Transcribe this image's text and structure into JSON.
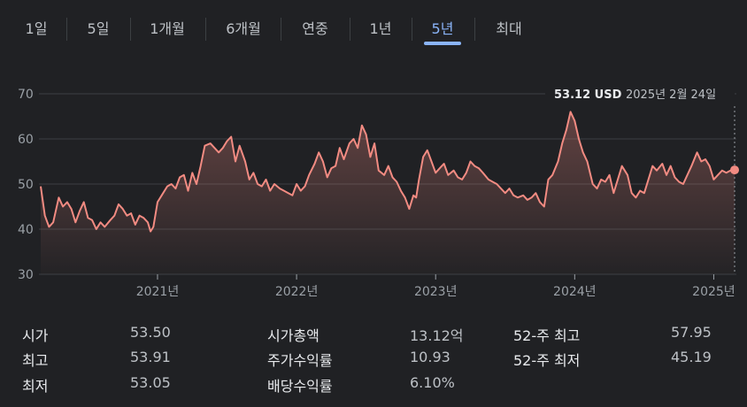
{
  "tabs": [
    {
      "label": "1일",
      "active": false
    },
    {
      "label": "5일",
      "active": false
    },
    {
      "label": "1개월",
      "active": false
    },
    {
      "label": "6개월",
      "active": false
    },
    {
      "label": "연중",
      "active": false
    },
    {
      "label": "1년",
      "active": false
    },
    {
      "label": "5년",
      "active": true
    },
    {
      "label": "최대",
      "active": false
    }
  ],
  "tooltip": {
    "price": "53.12 USD",
    "date": "2025년 2월 24일"
  },
  "stats": [
    {
      "label": "시가",
      "value": "53.50"
    },
    {
      "label": "최고",
      "value": "53.91"
    },
    {
      "label": "최저",
      "value": "53.05"
    },
    {
      "label": "시가총액",
      "value": "13.12억"
    },
    {
      "label": "주가수익률",
      "value": "10.93"
    },
    {
      "label": "배당수익률",
      "value": "6.10%"
    },
    {
      "label": "52-주 최고",
      "value": "57.95"
    },
    {
      "label": "52-주 최저",
      "value": "45.19"
    }
  ],
  "colors": {
    "line": "#f28b82",
    "accent": "#8ab4f8",
    "grid": "#3c4043",
    "background": "#202124"
  },
  "chart_data": {
    "type": "line",
    "ylim": [
      30,
      70
    ],
    "yticks": [
      "30",
      "40",
      "50",
      "60",
      "70"
    ],
    "xlim": [
      2020.16,
      2025.15
    ],
    "xticks": [
      {
        "x": 2021.0,
        "label": "2021년"
      },
      {
        "x": 2022.0,
        "label": "2022년"
      },
      {
        "x": 2023.0,
        "label": "2023년"
      },
      {
        "x": 2024.0,
        "label": "2024년"
      },
      {
        "x": 2025.0,
        "label": "2025년"
      }
    ],
    "grid": true,
    "series": [
      {
        "points": [
          [
            2020.16,
            49.5
          ],
          [
            2020.19,
            43
          ],
          [
            2020.22,
            40.5
          ],
          [
            2020.25,
            41.5
          ],
          [
            2020.29,
            47
          ],
          [
            2020.32,
            45
          ],
          [
            2020.35,
            46
          ],
          [
            2020.38,
            44.5
          ],
          [
            2020.41,
            41.5
          ],
          [
            2020.44,
            44
          ],
          [
            2020.47,
            46
          ],
          [
            2020.5,
            42.5
          ],
          [
            2020.53,
            42
          ],
          [
            2020.56,
            40
          ],
          [
            2020.59,
            41.5
          ],
          [
            2020.62,
            40.5
          ],
          [
            2020.66,
            42
          ],
          [
            2020.69,
            43
          ],
          [
            2020.72,
            45.5
          ],
          [
            2020.75,
            44.5
          ],
          [
            2020.78,
            43
          ],
          [
            2020.81,
            43.5
          ],
          [
            2020.84,
            41
          ],
          [
            2020.87,
            43
          ],
          [
            2020.9,
            42.5
          ],
          [
            2020.93,
            41.5
          ],
          [
            2020.95,
            39.5
          ],
          [
            2020.97,
            40.5
          ],
          [
            2021.0,
            46
          ],
          [
            2021.03,
            47.5
          ],
          [
            2021.07,
            49.5
          ],
          [
            2021.1,
            50
          ],
          [
            2021.13,
            49
          ],
          [
            2021.16,
            51.5
          ],
          [
            2021.19,
            52
          ],
          [
            2021.22,
            48.5
          ],
          [
            2021.25,
            52.5
          ],
          [
            2021.28,
            50
          ],
          [
            2021.31,
            54
          ],
          [
            2021.34,
            58.5
          ],
          [
            2021.38,
            59
          ],
          [
            2021.41,
            58
          ],
          [
            2021.44,
            57
          ],
          [
            2021.47,
            58
          ],
          [
            2021.5,
            59.5
          ],
          [
            2021.53,
            60.5
          ],
          [
            2021.56,
            55
          ],
          [
            2021.59,
            58.5
          ],
          [
            2021.63,
            55
          ],
          [
            2021.66,
            51
          ],
          [
            2021.69,
            52.5
          ],
          [
            2021.72,
            50
          ],
          [
            2021.75,
            49.5
          ],
          [
            2021.78,
            51
          ],
          [
            2021.81,
            48.5
          ],
          [
            2021.84,
            50
          ],
          [
            2021.88,
            49
          ],
          [
            2021.91,
            48.5
          ],
          [
            2021.94,
            48
          ],
          [
            2021.97,
            47.5
          ],
          [
            2022.0,
            50
          ],
          [
            2022.03,
            48.5
          ],
          [
            2022.06,
            49.5
          ],
          [
            2022.09,
            52
          ],
          [
            2022.13,
            54.5
          ],
          [
            2022.16,
            57
          ],
          [
            2022.19,
            55
          ],
          [
            2022.22,
            51.5
          ],
          [
            2022.25,
            53.5
          ],
          [
            2022.28,
            54
          ],
          [
            2022.31,
            58
          ],
          [
            2022.34,
            55.5
          ],
          [
            2022.38,
            59
          ],
          [
            2022.41,
            60
          ],
          [
            2022.44,
            58
          ],
          [
            2022.47,
            63
          ],
          [
            2022.5,
            61
          ],
          [
            2022.53,
            56
          ],
          [
            2022.56,
            59
          ],
          [
            2022.59,
            53
          ],
          [
            2022.63,
            52
          ],
          [
            2022.66,
            54
          ],
          [
            2022.69,
            51.5
          ],
          [
            2022.72,
            50.5
          ],
          [
            2022.75,
            48.5
          ],
          [
            2022.78,
            47
          ],
          [
            2022.81,
            44.5
          ],
          [
            2022.84,
            47.5
          ],
          [
            2022.86,
            47
          ],
          [
            2022.88,
            51
          ],
          [
            2022.91,
            56
          ],
          [
            2022.94,
            57.5
          ],
          [
            2022.97,
            55
          ],
          [
            2023.0,
            52.5
          ],
          [
            2023.03,
            53.5
          ],
          [
            2023.06,
            54.5
          ],
          [
            2023.09,
            52
          ],
          [
            2023.13,
            53
          ],
          [
            2023.16,
            51.5
          ],
          [
            2023.19,
            51
          ],
          [
            2023.22,
            52.5
          ],
          [
            2023.25,
            55
          ],
          [
            2023.28,
            54
          ],
          [
            2023.31,
            53.5
          ],
          [
            2023.34,
            52.5
          ],
          [
            2023.38,
            51
          ],
          [
            2023.41,
            50.5
          ],
          [
            2023.44,
            50
          ],
          [
            2023.47,
            49
          ],
          [
            2023.5,
            48
          ],
          [
            2023.53,
            49
          ],
          [
            2023.56,
            47.5
          ],
          [
            2023.59,
            47
          ],
          [
            2023.63,
            47.5
          ],
          [
            2023.66,
            46.5
          ],
          [
            2023.69,
            47
          ],
          [
            2023.72,
            48
          ],
          [
            2023.75,
            46
          ],
          [
            2023.78,
            45
          ],
          [
            2023.81,
            51
          ],
          [
            2023.84,
            52
          ],
          [
            2023.88,
            55
          ],
          [
            2023.91,
            59
          ],
          [
            2023.94,
            62
          ],
          [
            2023.97,
            66
          ],
          [
            2024.0,
            64
          ],
          [
            2024.03,
            60
          ],
          [
            2024.06,
            57
          ],
          [
            2024.09,
            55
          ],
          [
            2024.13,
            50
          ],
          [
            2024.16,
            49
          ],
          [
            2024.19,
            51
          ],
          [
            2024.22,
            50.5
          ],
          [
            2024.25,
            52
          ],
          [
            2024.28,
            48
          ],
          [
            2024.31,
            51
          ],
          [
            2024.34,
            54
          ],
          [
            2024.38,
            52
          ],
          [
            2024.41,
            48
          ],
          [
            2024.44,
            47
          ],
          [
            2024.47,
            48.5
          ],
          [
            2024.5,
            48
          ],
          [
            2024.53,
            51
          ],
          [
            2024.56,
            54
          ],
          [
            2024.59,
            53
          ],
          [
            2024.63,
            54.5
          ],
          [
            2024.66,
            52
          ],
          [
            2024.69,
            54
          ],
          [
            2024.72,
            51.5
          ],
          [
            2024.75,
            50.5
          ],
          [
            2024.78,
            50
          ],
          [
            2024.81,
            52
          ],
          [
            2024.84,
            54
          ],
          [
            2024.88,
            57
          ],
          [
            2024.91,
            55
          ],
          [
            2024.94,
            55.5
          ],
          [
            2024.97,
            54
          ],
          [
            2025.0,
            51
          ],
          [
            2025.03,
            52
          ],
          [
            2025.06,
            53
          ],
          [
            2025.09,
            52.5
          ],
          [
            2025.12,
            53
          ],
          [
            2025.15,
            53.12
          ]
        ]
      }
    ]
  }
}
